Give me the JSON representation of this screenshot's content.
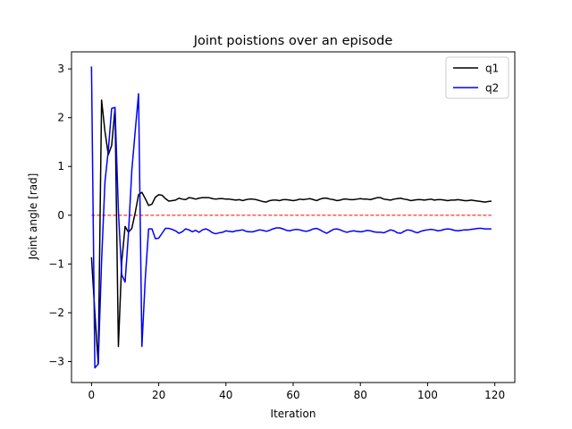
{
  "chart_data": {
    "type": "line",
    "title": "Joint poistions over an episode",
    "xlabel": "Iteration",
    "ylabel": "Joint angle [rad]",
    "xlim": [
      -5.95,
      125.95
    ],
    "ylim": [
      -3.43,
      3.35
    ],
    "xticks": [
      0,
      20,
      40,
      60,
      80,
      100,
      120
    ],
    "xtick_labels": [
      "0",
      "20",
      "40",
      "60",
      "80",
      "100",
      "120"
    ],
    "yticks": [
      -3,
      -2,
      -1,
      0,
      1,
      2,
      3
    ],
    "ytick_labels": [
      "−3",
      "−2",
      "−1",
      "0",
      "1",
      "2",
      "3"
    ],
    "grid": false,
    "legend_position": "top-right",
    "reference_line": {
      "y": 0,
      "x_range": [
        0,
        119
      ],
      "color": "#ff0000",
      "style": "dashed"
    },
    "series": [
      {
        "name": "q1",
        "color": "#000000",
        "values": [
          -0.86,
          -2.0,
          -3.05,
          2.36,
          1.72,
          1.24,
          1.43,
          2.19,
          -2.69,
          -0.95,
          -0.23,
          -0.35,
          -0.27,
          0.05,
          0.42,
          0.47,
          0.34,
          0.2,
          0.23,
          0.37,
          0.42,
          0.41,
          0.34,
          0.29,
          0.3,
          0.31,
          0.35,
          0.33,
          0.32,
          0.36,
          0.35,
          0.33,
          0.35,
          0.36,
          0.36,
          0.36,
          0.34,
          0.33,
          0.34,
          0.34,
          0.33,
          0.33,
          0.32,
          0.31,
          0.32,
          0.3,
          0.32,
          0.33,
          0.33,
          0.32,
          0.3,
          0.28,
          0.27,
          0.3,
          0.31,
          0.31,
          0.3,
          0.32,
          0.32,
          0.31,
          0.3,
          0.31,
          0.33,
          0.32,
          0.33,
          0.34,
          0.32,
          0.3,
          0.33,
          0.35,
          0.35,
          0.33,
          0.32,
          0.3,
          0.31,
          0.33,
          0.33,
          0.32,
          0.32,
          0.33,
          0.34,
          0.33,
          0.33,
          0.32,
          0.34,
          0.36,
          0.36,
          0.33,
          0.32,
          0.31,
          0.33,
          0.34,
          0.35,
          0.33,
          0.32,
          0.3,
          0.31,
          0.32,
          0.32,
          0.31,
          0.32,
          0.33,
          0.31,
          0.32,
          0.32,
          0.31,
          0.3,
          0.31,
          0.31,
          0.32,
          0.31,
          0.3,
          0.3,
          0.31,
          0.3,
          0.29,
          0.28,
          0.27,
          0.28,
          0.29
        ]
      },
      {
        "name": "q2",
        "color": "#0000ff",
        "values": [
          3.05,
          -3.13,
          -3.05,
          -0.94,
          0.68,
          1.33,
          2.19,
          2.21,
          0.09,
          -1.22,
          -1.37,
          -0.37,
          0.92,
          1.72,
          2.49,
          -2.69,
          -1.3,
          -0.28,
          -0.28,
          -0.48,
          -0.47,
          -0.37,
          -0.27,
          -0.27,
          -0.29,
          -0.32,
          -0.37,
          -0.34,
          -0.28,
          -0.3,
          -0.34,
          -0.31,
          -0.35,
          -0.3,
          -0.28,
          -0.31,
          -0.36,
          -0.38,
          -0.36,
          -0.35,
          -0.32,
          -0.33,
          -0.34,
          -0.32,
          -0.31,
          -0.3,
          -0.33,
          -0.34,
          -0.34,
          -0.32,
          -0.3,
          -0.31,
          -0.33,
          -0.31,
          -0.28,
          -0.26,
          -0.26,
          -0.28,
          -0.31,
          -0.32,
          -0.3,
          -0.29,
          -0.3,
          -0.32,
          -0.33,
          -0.31,
          -0.28,
          -0.27,
          -0.3,
          -0.34,
          -0.37,
          -0.33,
          -0.29,
          -0.28,
          -0.3,
          -0.33,
          -0.35,
          -0.33,
          -0.32,
          -0.33,
          -0.34,
          -0.33,
          -0.31,
          -0.32,
          -0.34,
          -0.35,
          -0.35,
          -0.36,
          -0.33,
          -0.3,
          -0.32,
          -0.36,
          -0.37,
          -0.33,
          -0.3,
          -0.31,
          -0.34,
          -0.36,
          -0.33,
          -0.31,
          -0.3,
          -0.29,
          -0.3,
          -0.32,
          -0.31,
          -0.29,
          -0.28,
          -0.29,
          -0.31,
          -0.32,
          -0.31,
          -0.3,
          -0.3,
          -0.29,
          -0.28,
          -0.27,
          -0.27,
          -0.28,
          -0.28,
          -0.28
        ]
      }
    ]
  }
}
